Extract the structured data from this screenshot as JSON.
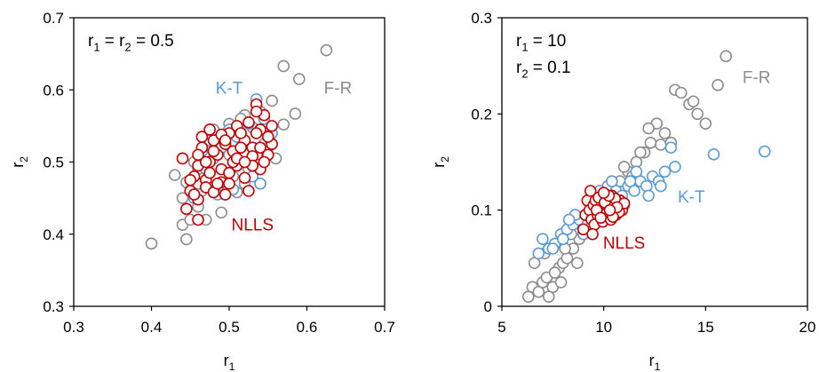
{
  "chart_data": [
    {
      "type": "scatter",
      "title": "",
      "xlabel": "r",
      "xlabel_sub": "1",
      "ylabel": "r",
      "ylabel_sub": "2",
      "xlim": [
        0.3,
        0.7
      ],
      "ylim": [
        0.3,
        0.7
      ],
      "xticks": [
        "0.3",
        "0.4",
        "0.5",
        "0.6",
        "0.7"
      ],
      "yticks": [
        "0.3",
        "0.4",
        "0.5",
        "0.6",
        "0.7"
      ],
      "legend": "none",
      "grid": false,
      "annotation": {
        "p1": "r",
        "s1": "1",
        "p2": " = r",
        "s2": "2",
        "p3": " = 0.5"
      },
      "series": [
        {
          "name": "F-R",
          "color": "#8c8c8c",
          "x": [
            0.4,
            0.43,
            0.44,
            0.445,
            0.45,
            0.46,
            0.44,
            0.445,
            0.46,
            0.47,
            0.48,
            0.5,
            0.52,
            0.54,
            0.555,
            0.57,
            0.59,
            0.625,
            0.585,
            0.57,
            0.55,
            0.535,
            0.52,
            0.51,
            0.49,
            0.47,
            0.465,
            0.475,
            0.495,
            0.515,
            0.53,
            0.545,
            0.56,
            0.505,
            0.455,
            0.485,
            0.525,
            0.54,
            0.5,
            0.48
          ],
          "y": [
            0.387,
            0.482,
            0.413,
            0.393,
            0.42,
            0.438,
            0.45,
            0.472,
            0.49,
            0.52,
            0.545,
            0.553,
            0.565,
            0.57,
            0.585,
            0.633,
            0.615,
            0.655,
            0.567,
            0.552,
            0.53,
            0.51,
            0.47,
            0.458,
            0.43,
            0.42,
            0.46,
            0.5,
            0.535,
            0.56,
            0.548,
            0.525,
            0.505,
            0.48,
            0.5,
            0.465,
            0.49,
            0.47,
            0.51,
            0.525
          ]
        },
        {
          "name": "K-T",
          "color": "#5b9bd5",
          "x": [
            0.535,
            0.545,
            0.555,
            0.525,
            0.51,
            0.5,
            0.49,
            0.48,
            0.47,
            0.46,
            0.455,
            0.465,
            0.475,
            0.52,
            0.53,
            0.54,
            0.55,
            0.505,
            0.485,
            0.515
          ],
          "y": [
            0.587,
            0.56,
            0.54,
            0.553,
            0.535,
            0.545,
            0.52,
            0.505,
            0.49,
            0.47,
            0.45,
            0.515,
            0.53,
            0.5,
            0.48,
            0.47,
            0.52,
            0.462,
            0.455,
            0.52
          ]
        },
        {
          "name": "NLLS",
          "color": "#c00000",
          "x": [
            0.44,
            0.445,
            0.45,
            0.455,
            0.46,
            0.465,
            0.47,
            0.475,
            0.48,
            0.485,
            0.49,
            0.495,
            0.5,
            0.505,
            0.51,
            0.515,
            0.52,
            0.525,
            0.53,
            0.535,
            0.54,
            0.545,
            0.55,
            0.555,
            0.46,
            0.47,
            0.48,
            0.49,
            0.5,
            0.51,
            0.52,
            0.53,
            0.54,
            0.55,
            0.465,
            0.475,
            0.485,
            0.495,
            0.505,
            0.515,
            0.525,
            0.535,
            0.545,
            0.45,
            0.47,
            0.49,
            0.51,
            0.53,
            0.46,
            0.48,
            0.5,
            0.52,
            0.54,
            0.455,
            0.475,
            0.495,
            0.515,
            0.535,
            0.555,
            0.46
          ],
          "y": [
            0.505,
            0.435,
            0.46,
            0.48,
            0.495,
            0.52,
            0.475,
            0.5,
            0.53,
            0.51,
            0.49,
            0.525,
            0.54,
            0.515,
            0.55,
            0.5,
            0.53,
            0.555,
            0.52,
            0.58,
            0.545,
            0.565,
            0.51,
            0.525,
            0.448,
            0.465,
            0.458,
            0.472,
            0.485,
            0.495,
            0.478,
            0.508,
            0.49,
            0.535,
            0.535,
            0.545,
            0.47,
            0.455,
            0.5,
            0.52,
            0.46,
            0.54,
            0.5,
            0.475,
            0.5,
            0.538,
            0.505,
            0.495,
            0.51,
            0.515,
            0.47,
            0.5,
            0.52,
            0.455,
            0.485,
            0.53,
            0.54,
            0.57,
            0.55,
            0.42
          ]
        }
      ],
      "labels": [
        {
          "text": "K-T",
          "series": "K-T",
          "x": 0.5,
          "y": 0.595
        },
        {
          "text": "F-R",
          "series": "F-R",
          "x": 0.64,
          "y": 0.595
        },
        {
          "text": "NLLS",
          "series": "NLLS",
          "x": 0.53,
          "y": 0.405
        }
      ]
    },
    {
      "type": "scatter",
      "title": "",
      "xlabel": "r",
      "xlabel_sub": "1",
      "ylabel": "r",
      "ylabel_sub": "2",
      "xlim": [
        5,
        20
      ],
      "ylim": [
        0,
        0.3
      ],
      "xticks": [
        "5",
        "10",
        "15",
        "20"
      ],
      "yticks": [
        "0",
        "0.1",
        "0.2",
        "0.3"
      ],
      "legend": "none",
      "grid": false,
      "annotation_lines": [
        {
          "p1": "r",
          "s1": "1",
          "p2": " = 10"
        },
        {
          "p1": "r",
          "s1": "2",
          "p2": " = 0.1"
        }
      ],
      "series": [
        {
          "name": "F-R",
          "color": "#8c8c8c",
          "x": [
            6.3,
            6.5,
            6.8,
            7.0,
            7.2,
            7.5,
            7.8,
            8.0,
            8.2,
            8.5,
            8.8,
            9.0,
            9.3,
            9.6,
            10.0,
            10.4,
            10.8,
            11.2,
            11.6,
            12.0,
            12.3,
            12.6,
            13.0,
            13.5,
            13.8,
            14.2,
            14.6,
            15.0,
            15.6,
            16.0,
            6.6,
            7.1,
            7.6,
            8.1,
            8.7,
            9.4,
            10.2,
            11.0,
            11.8,
            12.8,
            7.3,
            7.9,
            8.4,
            9.1,
            9.8,
            10.6,
            11.4,
            12.2,
            13.3,
            14.4
          ],
          "y": [
            0.01,
            0.02,
            0.015,
            0.025,
            0.03,
            0.02,
            0.04,
            0.045,
            0.05,
            0.06,
            0.07,
            0.075,
            0.085,
            0.09,
            0.1,
            0.12,
            0.13,
            0.14,
            0.15,
            0.16,
            0.17,
            0.19,
            0.18,
            0.225,
            0.222,
            0.21,
            0.2,
            0.19,
            0.23,
            0.26,
            0.045,
            0.055,
            0.035,
            0.06,
            0.045,
            0.08,
            0.125,
            0.145,
            0.16,
            0.168,
            0.01,
            0.025,
            0.075,
            0.095,
            0.11,
            0.1,
            0.135,
            0.185,
            0.17,
            0.213
          ]
        },
        {
          "name": "K-T",
          "color": "#5b9bd5",
          "x": [
            6.8,
            7.0,
            7.3,
            7.6,
            7.9,
            8.2,
            8.5,
            8.8,
            9.1,
            9.4,
            9.7,
            10.0,
            10.3,
            10.6,
            10.9,
            11.2,
            11.5,
            11.8,
            12.1,
            12.4,
            12.7,
            13.0,
            13.5,
            15.4,
            17.9,
            8.0,
            8.6,
            9.2,
            9.8,
            10.4,
            11.0,
            11.6,
            12.2,
            12.8,
            13.3,
            7.5,
            8.3,
            9.0,
            10.5,
            11.3
          ],
          "y": [
            0.055,
            0.07,
            0.06,
            0.065,
            0.075,
            0.08,
            0.085,
            0.09,
            0.095,
            0.1,
            0.11,
            0.105,
            0.11,
            0.12,
            0.115,
            0.125,
            0.12,
            0.13,
            0.125,
            0.135,
            0.13,
            0.14,
            0.145,
            0.158,
            0.161,
            0.07,
            0.095,
            0.085,
            0.12,
            0.13,
            0.105,
            0.14,
            0.115,
            0.125,
            0.165,
            0.06,
            0.09,
            0.075,
            0.095,
            0.13
          ]
        },
        {
          "name": "NLLS",
          "color": "#c00000",
          "x": [
            9.0,
            9.1,
            9.2,
            9.3,
            9.4,
            9.5,
            9.6,
            9.7,
            9.8,
            9.9,
            10.0,
            10.1,
            10.2,
            10.3,
            10.4,
            10.5,
            10.6,
            10.7,
            10.8,
            10.9,
            11.0,
            9.35,
            9.55,
            9.75,
            9.95,
            10.15,
            10.35,
            10.55,
            10.75,
            9.65,
            9.85,
            10.05,
            10.25,
            10.45,
            10.65,
            9.45,
            10.0,
            10.3
          ],
          "y": [
            0.08,
            0.095,
            0.11,
            0.1,
            0.09,
            0.105,
            0.11,
            0.095,
            0.1,
            0.105,
            0.095,
            0.11,
            0.1,
            0.105,
            0.115,
            0.1,
            0.095,
            0.105,
            0.11,
            0.1,
            0.107,
            0.12,
            0.085,
            0.113,
            0.088,
            0.097,
            0.09,
            0.112,
            0.098,
            0.1,
            0.092,
            0.108,
            0.115,
            0.093,
            0.103,
            0.075,
            0.118,
            0.1
          ]
        }
      ],
      "labels": [
        {
          "text": "F-R",
          "series": "F-R",
          "x": 17.5,
          "y": 0.232
        },
        {
          "text": "K-T",
          "series": "K-T",
          "x": 14.3,
          "y": 0.108
        },
        {
          "text": "NLLS",
          "series": "NLLS",
          "x": 11.0,
          "y": 0.06
        }
      ]
    }
  ]
}
